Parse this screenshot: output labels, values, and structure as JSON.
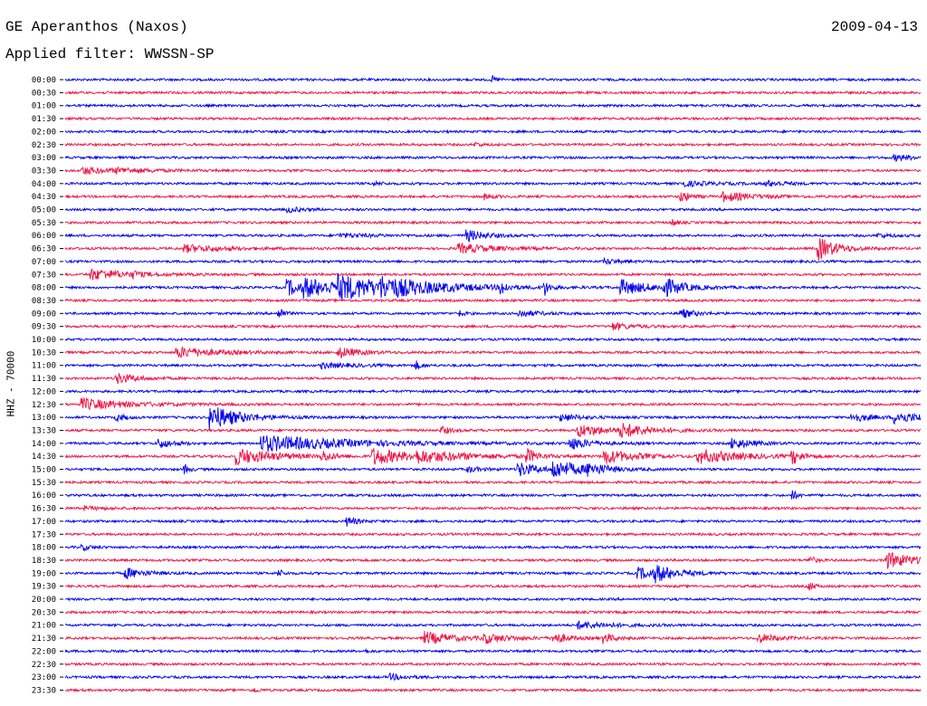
{
  "header": {
    "station": "GE Aperanthos (Naxos)",
    "date": "2009-04-13",
    "filter": "Applied filter: WWSSN-SP"
  },
  "chart_data": {
    "type": "line",
    "ylabel": "HHZ - 70000",
    "trace_colors": [
      "#0000ee",
      "#ee1144"
    ],
    "rows": [
      {
        "time": "00:00",
        "events": [
          [
            0.5,
            3,
            5
          ]
        ]
      },
      {
        "time": "00:30",
        "events": []
      },
      {
        "time": "01:00",
        "events": []
      },
      {
        "time": "01:30",
        "events": []
      },
      {
        "time": "02:00",
        "events": []
      },
      {
        "time": "02:30",
        "events": [
          [
            0.48,
            2,
            8
          ]
        ]
      },
      {
        "time": "03:00",
        "events": [
          [
            0.97,
            3,
            25
          ]
        ]
      },
      {
        "time": "03:30",
        "events": [
          [
            0.02,
            4,
            30
          ],
          [
            0.06,
            2,
            40
          ]
        ]
      },
      {
        "time": "04:00",
        "events": [
          [
            0.36,
            2,
            10
          ],
          [
            0.72,
            3,
            30
          ],
          [
            0.82,
            3,
            20
          ]
        ]
      },
      {
        "time": "04:30",
        "events": [
          [
            0.72,
            6,
            10
          ],
          [
            0.77,
            5,
            30
          ],
          [
            0.49,
            3,
            10
          ]
        ]
      },
      {
        "time": "05:00",
        "events": [
          [
            0.26,
            3,
            15
          ]
        ]
      },
      {
        "time": "05:30",
        "events": [
          [
            0.71,
            4,
            5
          ]
        ]
      },
      {
        "time": "06:00",
        "events": [
          [
            0.47,
            6,
            20
          ],
          [
            0.32,
            2,
            40
          ],
          [
            0.95,
            2,
            15
          ]
        ]
      },
      {
        "time": "06:30",
        "events": [
          [
            0.14,
            4,
            40
          ],
          [
            0.46,
            5,
            40
          ],
          [
            0.88,
            13,
            20
          ]
        ]
      },
      {
        "time": "07:00",
        "events": [
          [
            0.63,
            3,
            15
          ]
        ]
      },
      {
        "time": "07:30",
        "events": [
          [
            0.03,
            6,
            40
          ],
          [
            0.08,
            3,
            5
          ]
        ]
      },
      {
        "time": "08:00",
        "events": [
          [
            0.26,
            9,
            20
          ],
          [
            0.28,
            8,
            60
          ],
          [
            0.32,
            10,
            60
          ],
          [
            0.37,
            7,
            60
          ],
          [
            0.51,
            8,
            5
          ],
          [
            0.56,
            9,
            5
          ],
          [
            0.65,
            8,
            30
          ],
          [
            0.7,
            9,
            20
          ]
        ]
      },
      {
        "time": "08:30",
        "events": []
      },
      {
        "time": "09:00",
        "events": [
          [
            0.25,
            8,
            5
          ],
          [
            0.46,
            4,
            5
          ],
          [
            0.53,
            4,
            20
          ],
          [
            0.72,
            5,
            15
          ]
        ]
      },
      {
        "time": "09:30",
        "events": [
          [
            0.64,
            4,
            20
          ]
        ]
      },
      {
        "time": "10:00",
        "events": []
      },
      {
        "time": "10:30",
        "events": [
          [
            0.13,
            6,
            40
          ],
          [
            0.32,
            6,
            20
          ]
        ]
      },
      {
        "time": "11:00",
        "events": [
          [
            0.3,
            3,
            30
          ],
          [
            0.41,
            5,
            5
          ]
        ]
      },
      {
        "time": "11:30",
        "events": [
          [
            0.06,
            6,
            20
          ]
        ]
      },
      {
        "time": "12:00",
        "events": []
      },
      {
        "time": "12:30",
        "events": [
          [
            0.02,
            6,
            50
          ]
        ]
      },
      {
        "time": "13:00",
        "events": [
          [
            0.17,
            14,
            30
          ],
          [
            0.06,
            4,
            10
          ],
          [
            0.58,
            4,
            20
          ],
          [
            0.92,
            5,
            20
          ],
          [
            0.97,
            6,
            30
          ]
        ]
      },
      {
        "time": "13:30",
        "events": [
          [
            0.6,
            7,
            30
          ],
          [
            0.65,
            7,
            30
          ],
          [
            0.44,
            4,
            10
          ]
        ]
      },
      {
        "time": "14:00",
        "events": [
          [
            0.11,
            5,
            15
          ],
          [
            0.23,
            9,
            90
          ],
          [
            0.59,
            7,
            20
          ],
          [
            0.78,
            6,
            20
          ]
        ]
      },
      {
        "time": "14:30",
        "events": [
          [
            0.2,
            9,
            40
          ],
          [
            0.3,
            6,
            10
          ],
          [
            0.36,
            9,
            40
          ],
          [
            0.41,
            5,
            60
          ],
          [
            0.54,
            8,
            10
          ],
          [
            0.63,
            8,
            30
          ],
          [
            0.74,
            8,
            40
          ],
          [
            0.85,
            8,
            10
          ]
        ]
      },
      {
        "time": "15:00",
        "events": [
          [
            0.14,
            5,
            5
          ],
          [
            0.53,
            8,
            20
          ],
          [
            0.57,
            10,
            30
          ],
          [
            0.61,
            5,
            20
          ],
          [
            0.47,
            3,
            15
          ]
        ]
      },
      {
        "time": "15:30",
        "events": []
      },
      {
        "time": "16:00",
        "events": [
          [
            0.85,
            6,
            5
          ]
        ]
      },
      {
        "time": "16:30",
        "events": [
          [
            0.02,
            2,
            20
          ]
        ]
      },
      {
        "time": "17:00",
        "events": [
          [
            0.33,
            5,
            10
          ]
        ]
      },
      {
        "time": "17:30",
        "events": []
      },
      {
        "time": "18:00",
        "events": [
          [
            0.02,
            3,
            10
          ]
        ]
      },
      {
        "time": "18:30",
        "events": [
          [
            0.87,
            6,
            5
          ],
          [
            0.96,
            9,
            30
          ]
        ]
      },
      {
        "time": "19:00",
        "events": [
          [
            0.07,
            6,
            20
          ],
          [
            0.25,
            4,
            5
          ],
          [
            0.67,
            6,
            30
          ],
          [
            0.69,
            7,
            20
          ]
        ]
      },
      {
        "time": "19:30",
        "events": [
          [
            0.87,
            5,
            5
          ]
        ]
      },
      {
        "time": "20:00",
        "events": []
      },
      {
        "time": "20:30",
        "events": []
      },
      {
        "time": "21:00",
        "events": [
          [
            0.6,
            4,
            35
          ]
        ]
      },
      {
        "time": "21:30",
        "events": [
          [
            0.42,
            7,
            30
          ],
          [
            0.49,
            5,
            25
          ],
          [
            0.57,
            6,
            15
          ],
          [
            0.63,
            6,
            10
          ],
          [
            0.81,
            5,
            20
          ]
        ]
      },
      {
        "time": "22:00",
        "events": [
          [
            0.35,
            2,
            5
          ]
        ]
      },
      {
        "time": "22:30",
        "events": []
      },
      {
        "time": "23:00",
        "events": [
          [
            0.38,
            3,
            20
          ]
        ]
      },
      {
        "time": "23:30",
        "events": [
          [
            0.22,
            3,
            5
          ]
        ]
      }
    ]
  }
}
